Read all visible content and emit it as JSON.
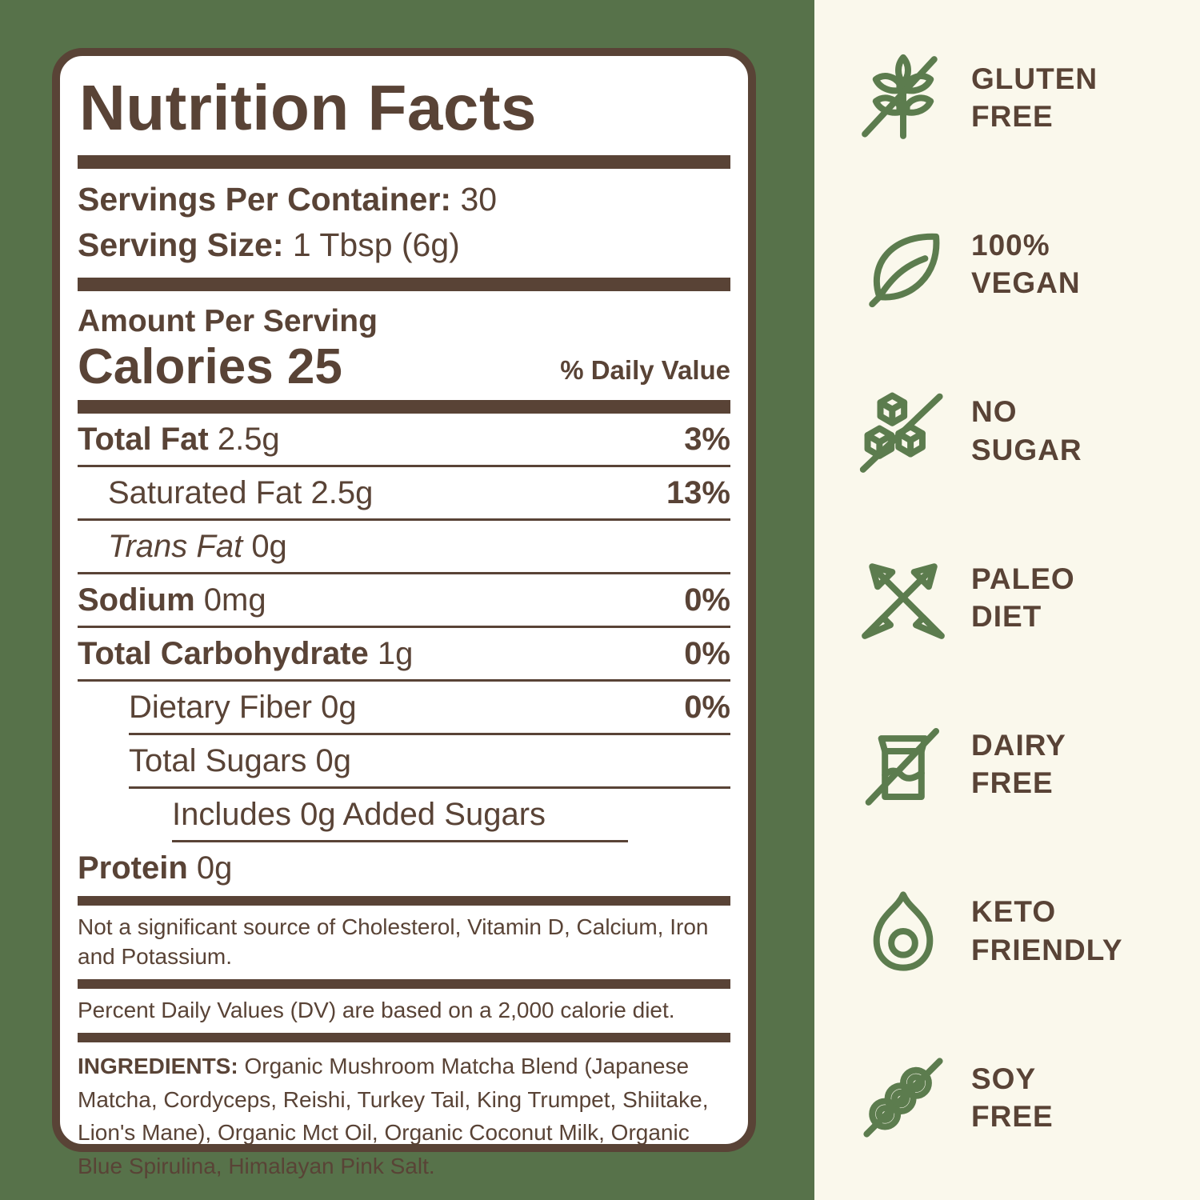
{
  "colors": {
    "brown": "#594336",
    "background_green": "#57724A",
    "panel_cream": "#FAF8EC",
    "icon_green": "#5C7C4E",
    "label_background": "#FFFFFF"
  },
  "label": {
    "title": "Nutrition Facts",
    "servings_per_container_label": "Servings Per Container:",
    "servings_per_container_value": "30",
    "serving_size_label": "Serving Size:",
    "serving_size_value": "1 Tbsp (6g)",
    "amount_per_serving": "Amount Per Serving",
    "calories_label": "Calories",
    "calories_value": "25",
    "daily_value_header": "% Daily Value",
    "rows": [
      {
        "name": "Total Fat",
        "amount": "2.5g",
        "dv": "3%",
        "name_bold": true,
        "italic": false,
        "indent": 0,
        "sep": "full"
      },
      {
        "name": "Saturated Fat",
        "amount": "2.5g",
        "dv": "13%",
        "name_bold": false,
        "italic": false,
        "indent": 1,
        "sep": "full"
      },
      {
        "name": "Trans Fat",
        "amount": "0g",
        "dv": "",
        "name_bold": false,
        "italic": true,
        "indent": 1,
        "sep": "full"
      },
      {
        "name": "Sodium",
        "amount": "0mg",
        "dv": "0%",
        "name_bold": true,
        "italic": false,
        "indent": 0,
        "sep": "full"
      },
      {
        "name": "Total Carbohydrate",
        "amount": "1g",
        "dv": "0%",
        "name_bold": true,
        "italic": false,
        "indent": 0,
        "sep": "full"
      },
      {
        "name": "Dietary Fiber",
        "amount": "0g",
        "dv": "0%",
        "name_bold": false,
        "italic": false,
        "indent": 2,
        "sep": "indent"
      },
      {
        "name": "Total Sugars",
        "amount": "0g",
        "dv": "",
        "name_bold": false,
        "italic": false,
        "indent": 2,
        "sep": "indent"
      },
      {
        "name": "Includes 0g Added Sugars",
        "amount": "",
        "dv": "",
        "name_bold": false,
        "italic": false,
        "indent": 3,
        "sep": "deep"
      },
      {
        "name": "Protein",
        "amount": "0g",
        "dv": "",
        "name_bold": true,
        "italic": false,
        "indent": 0,
        "sep": "none"
      }
    ],
    "footnote_sources": "Not a significant source of Cholesterol, Vitamin D, Calcium, Iron and Potassium.",
    "footnote_daily_values": "Percent Daily Values (DV) are based on a 2,000 calorie diet.",
    "ingredients_label": "INGREDIENTS:",
    "ingredients_text": " Organic Mushroom Matcha Blend (Japanese Matcha, Cordyceps, Reishi, Turkey Tail, King Trumpet, Shiitake, Lion's Mane), Organic Mct Oil, Organic Coconut Milk, Organic Blue Spirulina, Himalayan Pink Salt."
  },
  "badges": [
    {
      "id": "gluten-free",
      "icon": "wheat-slash-icon",
      "lines": [
        "GLUTEN",
        "FREE"
      ]
    },
    {
      "id": "vegan",
      "icon": "leaf-icon",
      "lines": [
        "100%",
        "VEGAN"
      ]
    },
    {
      "id": "no-sugar",
      "icon": "sugar-cubes-slash-icon",
      "lines": [
        "NO",
        "SUGAR"
      ]
    },
    {
      "id": "paleo-diet",
      "icon": "crossed-arrows-icon",
      "lines": [
        "PALEO",
        "DIET"
      ]
    },
    {
      "id": "dairy-free",
      "icon": "milk-carton-slash-icon",
      "lines": [
        "DAIRY",
        "FREE"
      ]
    },
    {
      "id": "keto-friendly",
      "icon": "avocado-icon",
      "lines": [
        "KETO",
        "FRIENDLY"
      ]
    },
    {
      "id": "soy-free",
      "icon": "soy-pod-slash-icon",
      "lines": [
        "SOY",
        "FREE"
      ]
    }
  ]
}
